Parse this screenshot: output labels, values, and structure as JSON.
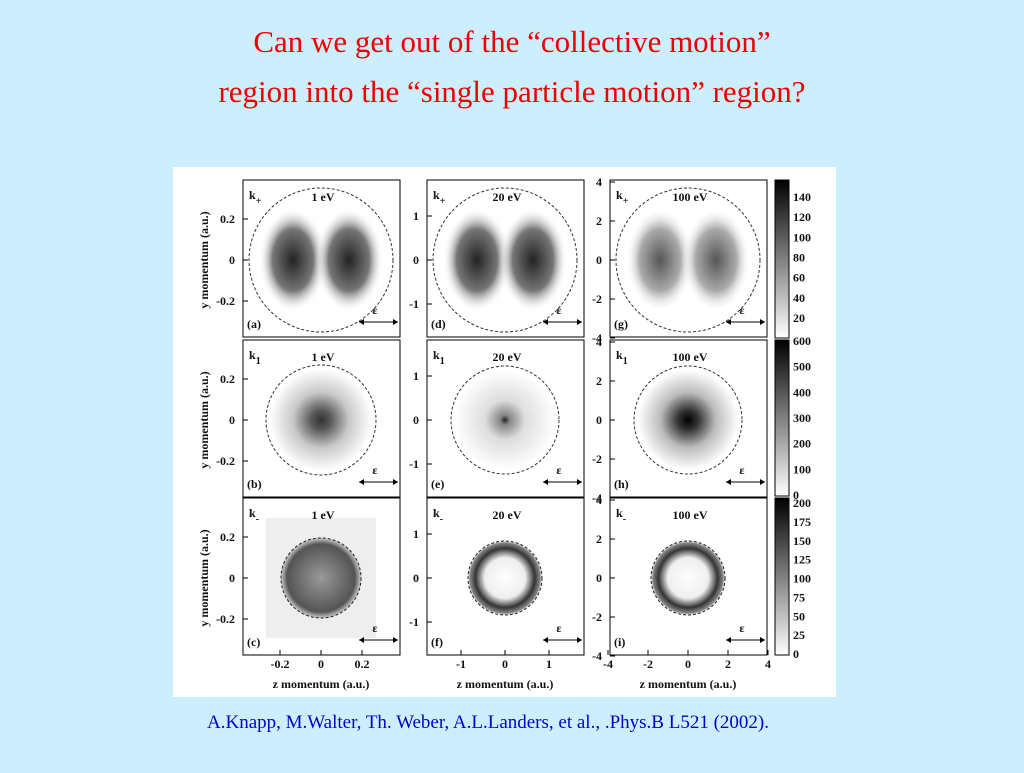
{
  "title": [
    "Can we get out of the “collective motion”",
    "region into the “single particle motion” region?"
  ],
  "figure": {
    "y_axis_label": "y momentum  (a.u.)",
    "x_axis_label": "z momentum (a.u.)",
    "columns": [
      {
        "yticks": [
          "0.2",
          "0",
          "-0.2"
        ],
        "xticks": [
          "-0.2",
          "0",
          "0.2"
        ]
      },
      {
        "yticks": [
          "1",
          "0",
          "-1"
        ],
        "xticks": [
          "-1",
          "0",
          "1"
        ]
      },
      {
        "yticks": [
          "4",
          "2",
          "0",
          "-2",
          "-4"
        ],
        "xticks": [
          "-4",
          "-2",
          "0",
          "2",
          "4"
        ]
      }
    ],
    "panels": [
      {
        "k": "k",
        "sub": "+",
        "energy": "1 eV",
        "label": "(a)",
        "epsilon": "ε"
      },
      {
        "k": "k",
        "sub": "+",
        "energy": "20 eV",
        "label": "(d)",
        "epsilon": "ε"
      },
      {
        "k": "k",
        "sub": "+",
        "energy": "100 eV",
        "label": "(g)",
        "epsilon": "ε"
      },
      {
        "k": "k",
        "sub": "1",
        "energy": "1 eV",
        "label": "(b)",
        "epsilon": "ε"
      },
      {
        "k": "k",
        "sub": "1",
        "energy": "20 eV",
        "label": "(e)",
        "epsilon": "ε"
      },
      {
        "k": "k",
        "sub": "1",
        "energy": "100 eV",
        "label": "(h)",
        "epsilon": "ε"
      },
      {
        "k": "k",
        "sub": "-",
        "energy": "1 eV",
        "label": "(c)",
        "epsilon": "ε"
      },
      {
        "k": "k",
        "sub": "-",
        "energy": "20 eV",
        "label": "(f)",
        "epsilon": "ε"
      },
      {
        "k": "k",
        "sub": "-",
        "energy": "100 eV",
        "label": "(i)",
        "epsilon": "ε"
      }
    ],
    "colorbars": [
      [
        "140",
        "120",
        "100",
        "80",
        "60",
        "40",
        "20"
      ],
      [
        "600",
        "500",
        "400",
        "300",
        "200",
        "100",
        "0"
      ],
      [
        "200",
        "175",
        "150",
        "125",
        "100",
        "75",
        "50",
        "25",
        "0"
      ]
    ]
  },
  "citation": "A.Knapp, M.Walter, Th. Weber, A.L.Landers, et al., .Phys.B L521 (2002)."
}
